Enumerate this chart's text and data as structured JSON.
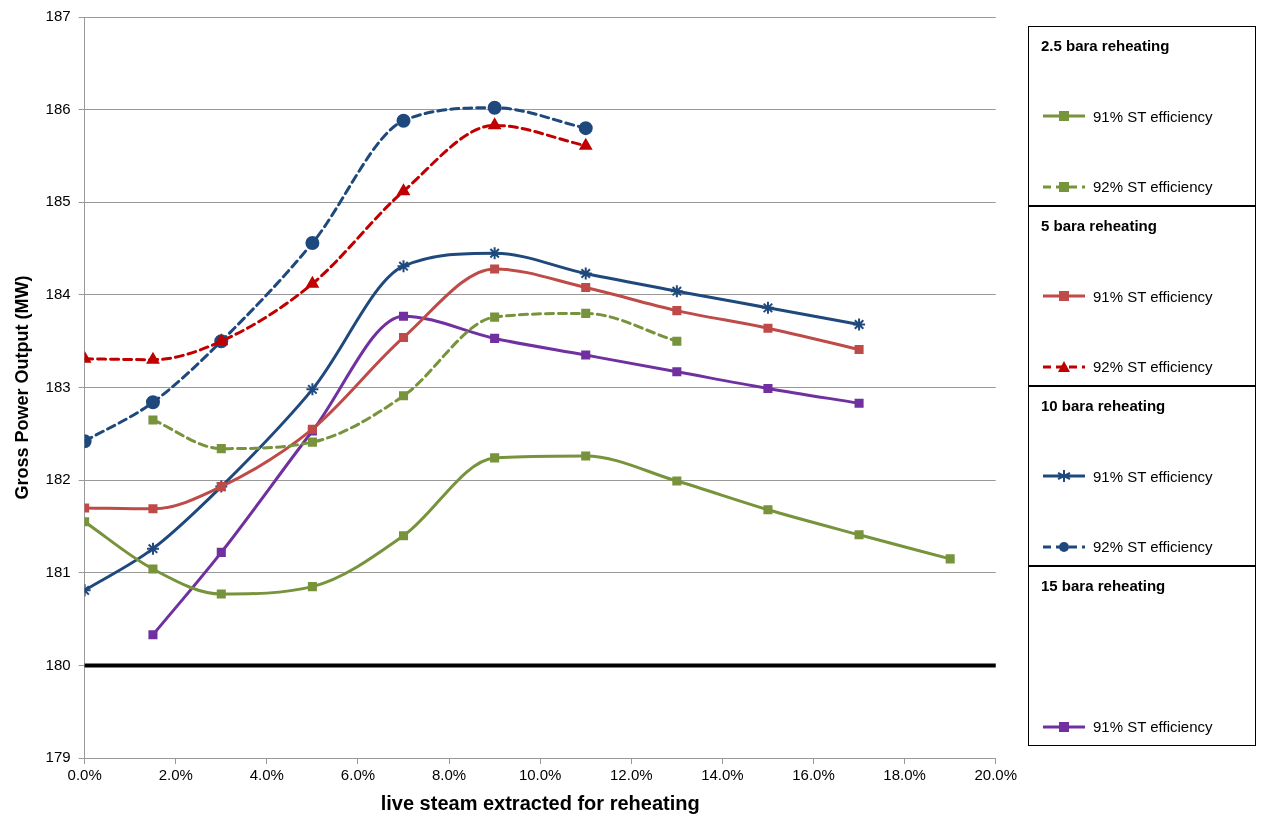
{
  "chart_data": {
    "type": "line",
    "xlabel": "live steam extracted for reheating",
    "ylabel": "Gross Power Output (MW)",
    "xlim": [
      0,
      20
    ],
    "ylim": [
      179,
      187
    ],
    "xticks": [
      {
        "value": 0,
        "label": "0.0%"
      },
      {
        "value": 2,
        "label": "2.0%"
      },
      {
        "value": 4,
        "label": "4.0%"
      },
      {
        "value": 6,
        "label": "6.0%"
      },
      {
        "value": 8,
        "label": "8.0%"
      },
      {
        "value": 10,
        "label": "10.0%"
      },
      {
        "value": 12,
        "label": "12.0%"
      },
      {
        "value": 14,
        "label": "14.0%"
      },
      {
        "value": 16,
        "label": "16.0%"
      },
      {
        "value": 18,
        "label": "18.0%"
      },
      {
        "value": 20,
        "label": "20.0%"
      }
    ],
    "yticks": [
      179,
      180,
      181,
      182,
      183,
      184,
      185,
      186,
      187
    ],
    "grid": "y",
    "legend": "right",
    "annotations": [
      "2.5 bara reheating",
      "5 bara reheating",
      "10 bara reheating",
      "15 bara reheating"
    ],
    "ref_lines": [
      {
        "axis": "y",
        "value": 180,
        "color": "#000000"
      }
    ],
    "series": [
      {
        "name": "91% ST efficiency",
        "color": "#77933c",
        "marker": "square",
        "line_style": "solid",
        "x": [
          0,
          1.5,
          3,
          5,
          7,
          9,
          11,
          13,
          15,
          17,
          19
        ],
        "values": [
          181.55,
          181.04,
          180.77,
          180.85,
          181.4,
          182.24,
          182.26,
          181.99,
          181.68,
          181.41,
          181.15
        ]
      },
      {
        "name": "92% ST efficiency",
        "color": "#77933c",
        "marker": "square",
        "line_style": "dashed",
        "x": [
          1.5,
          3,
          5,
          7,
          9,
          11,
          13
        ],
        "values": [
          182.65,
          182.34,
          182.41,
          182.91,
          183.76,
          183.8,
          183.5
        ]
      },
      {
        "name": "91% ST efficiency",
        "color": "#be4b48",
        "marker": "square",
        "line_style": "solid",
        "x": [
          0,
          1.5,
          3,
          5,
          7,
          9,
          11,
          13,
          15,
          17
        ],
        "values": [
          181.7,
          181.69,
          181.93,
          182.55,
          183.54,
          184.28,
          184.08,
          183.83,
          183.64,
          183.41
        ]
      },
      {
        "name": "92% ST efficiency",
        "color": "#c00000",
        "marker": "triangle",
        "line_style": "dashed",
        "x": [
          0,
          1.5,
          3,
          5,
          7,
          9,
          11
        ],
        "values": [
          183.31,
          183.3,
          183.5,
          184.12,
          185.12,
          185.83,
          185.61
        ]
      },
      {
        "name": "91% ST efficiency",
        "color": "#1f497d",
        "marker": "cross",
        "line_style": "solid",
        "x": [
          0,
          1.5,
          3,
          5,
          7,
          9,
          11,
          13,
          15,
          17
        ],
        "values": [
          180.81,
          181.26,
          181.93,
          182.98,
          184.31,
          184.45,
          184.23,
          184.04,
          183.86,
          183.68
        ]
      },
      {
        "name": "92% ST efficiency",
        "color": "#1f497d",
        "marker": "circle",
        "line_style": "dashed",
        "x": [
          0,
          1.5,
          3,
          5,
          7,
          9,
          11
        ],
        "values": [
          182.42,
          182.84,
          183.5,
          184.56,
          185.88,
          186.02,
          185.8
        ]
      },
      {
        "name": "91% ST efficiency",
        "color": "#7030a0",
        "marker": "square",
        "line_style": "solid",
        "x": [
          1.5,
          3,
          5,
          7,
          9,
          11,
          13,
          15,
          17
        ],
        "values": [
          180.33,
          181.22,
          182.53,
          183.77,
          183.53,
          183.35,
          183.17,
          182.99,
          182.83
        ]
      }
    ]
  }
}
